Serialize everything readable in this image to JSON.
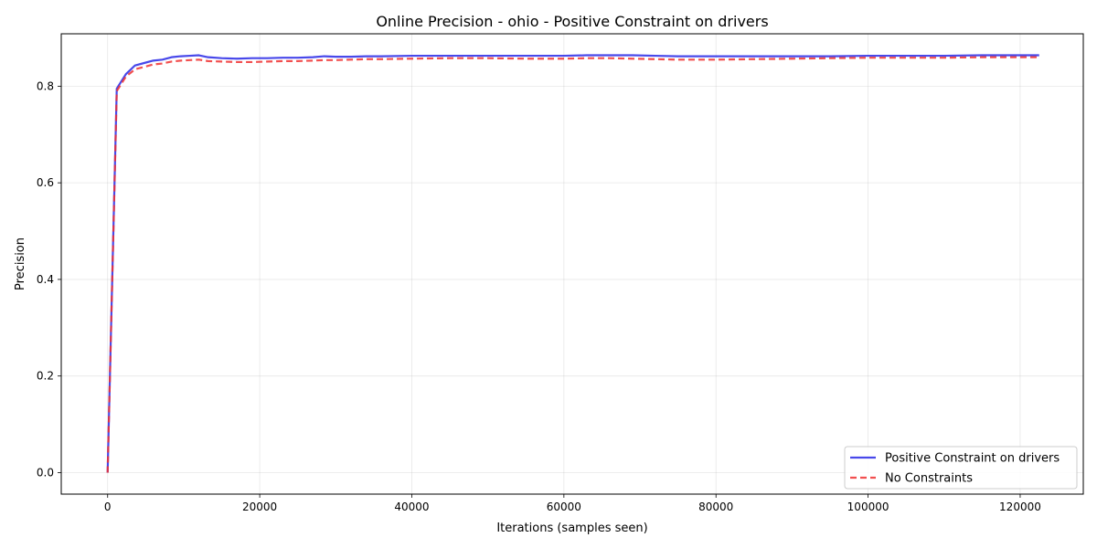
{
  "chart_data": {
    "type": "line",
    "title": "Online Precision - ohio - Positive Constraint on drivers",
    "xlabel": "Iterations (samples seen)",
    "ylabel": "Precision",
    "xlim": [
      -6100,
      128300
    ],
    "ylim": [
      -0.0445,
      0.9085
    ],
    "xticks": [
      0,
      20000,
      40000,
      60000,
      80000,
      100000,
      120000
    ],
    "yticks": [
      0.0,
      0.2,
      0.4,
      0.6,
      0.8
    ],
    "xtick_labels": [
      "0",
      "20000",
      "40000",
      "60000",
      "80000",
      "100000",
      "120000"
    ],
    "ytick_labels": [
      "0.0",
      "0.2",
      "0.4",
      "0.6",
      "0.8"
    ],
    "grid": true,
    "legend_position": "bottom-right",
    "series": [
      {
        "name": "Positive Constraint on drivers",
        "color": "#2828e6",
        "style": "solid",
        "x": [
          0,
          1200,
          2400,
          3600,
          4800,
          6000,
          7200,
          8400,
          9600,
          10800,
          12000,
          13200,
          15000,
          17000,
          19000,
          21000,
          23000,
          25000,
          27000,
          28500,
          30000,
          32000,
          34000,
          36000,
          40000,
          45000,
          50000,
          55000,
          60000,
          63000,
          66000,
          69000,
          72000,
          75000,
          78000,
          80000,
          85000,
          90000,
          95000,
          100000,
          105000,
          110000,
          115000,
          120000,
          122500
        ],
        "y": [
          0.0,
          0.795,
          0.825,
          0.843,
          0.848,
          0.853,
          0.855,
          0.86,
          0.862,
          0.863,
          0.864,
          0.86,
          0.858,
          0.857,
          0.858,
          0.858,
          0.859,
          0.859,
          0.86,
          0.862,
          0.861,
          0.861,
          0.862,
          0.862,
          0.863,
          0.863,
          0.863,
          0.863,
          0.863,
          0.864,
          0.864,
          0.864,
          0.863,
          0.862,
          0.862,
          0.862,
          0.862,
          0.862,
          0.862,
          0.863,
          0.863,
          0.863,
          0.864,
          0.864,
          0.864
        ]
      },
      {
        "name": "No Constraints",
        "color": "#f03030",
        "style": "dashed",
        "x": [
          0,
          1200,
          2400,
          3600,
          4800,
          6000,
          7200,
          8400,
          9600,
          10800,
          12000,
          13200,
          15000,
          17000,
          19000,
          21000,
          23000,
          25000,
          27000,
          28500,
          30000,
          32000,
          34000,
          36000,
          40000,
          45000,
          50000,
          55000,
          60000,
          63000,
          66000,
          69000,
          72000,
          75000,
          78000,
          80000,
          85000,
          90000,
          95000,
          100000,
          105000,
          110000,
          115000,
          120000,
          122500
        ],
        "y": [
          0.0,
          0.79,
          0.82,
          0.835,
          0.84,
          0.845,
          0.847,
          0.851,
          0.853,
          0.854,
          0.855,
          0.852,
          0.851,
          0.85,
          0.85,
          0.851,
          0.852,
          0.852,
          0.853,
          0.854,
          0.854,
          0.855,
          0.856,
          0.856,
          0.857,
          0.858,
          0.858,
          0.857,
          0.857,
          0.858,
          0.858,
          0.857,
          0.856,
          0.855,
          0.855,
          0.855,
          0.856,
          0.857,
          0.858,
          0.859,
          0.859,
          0.859,
          0.86,
          0.86,
          0.86
        ]
      }
    ]
  }
}
